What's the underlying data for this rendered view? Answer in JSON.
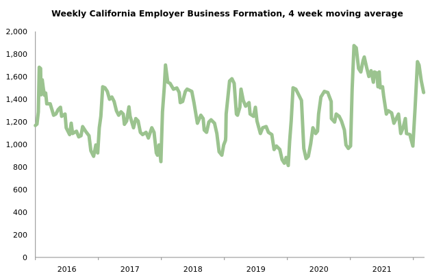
{
  "chart_data": {
    "type": "line",
    "title": "Weekly California Employer Business Formation, 4 week moving average",
    "xlabel": "",
    "ylabel": "",
    "ylim": [
      0,
      2000
    ],
    "yticks": [
      0,
      200,
      400,
      600,
      800,
      1000,
      1200,
      1400,
      1600,
      1800,
      2000
    ],
    "ytick_labels": [
      "0",
      "200",
      "400",
      "600",
      "800",
      "1,000",
      "1,200",
      "1,400",
      "1,600",
      "1,800",
      "2,000"
    ],
    "xlim": [
      2016.0,
      2022.177
    ],
    "xtick_boundaries": [
      2016,
      2017,
      2018,
      2019,
      2020,
      2021,
      2022
    ],
    "xtick_labels": [
      "2016",
      "2017",
      "2018",
      "2019",
      "2020",
      "2021"
    ],
    "grid": false,
    "line_color": "#9BC38F",
    "series": [
      {
        "x": [
          2016.0,
          2016.025,
          2016.047,
          2016.061,
          2016.083,
          2016.09,
          2016.109,
          2016.126,
          2016.145,
          2016.163,
          2016.18,
          2016.235,
          2016.289,
          2016.326,
          2016.362,
          2016.398,
          2016.416,
          2016.471,
          2016.489,
          2016.543,
          2016.568,
          2016.59,
          2016.652,
          2016.688,
          2016.724,
          2016.75,
          2016.797,
          2016.851,
          2016.88,
          2016.924,
          2016.96,
          2016.989,
          2017.014,
          2017.039,
          2017.068,
          2017.104,
          2017.141,
          2017.177,
          2017.213,
          2017.25,
          2017.286,
          2017.322,
          2017.359,
          2017.395,
          2017.413,
          2017.449,
          2017.485,
          2017.503,
          2017.558,
          2017.593,
          2017.63,
          2017.666,
          2017.702,
          2017.757,
          2017.793,
          2017.848,
          2017.884,
          2017.92,
          2017.938,
          2017.963,
          2017.992,
          2018.017,
          2018.047,
          2018.065,
          2018.101,
          2018.137,
          2018.191,
          2018.246,
          2018.283,
          2018.3,
          2018.337,
          2018.38,
          2018.409,
          2018.446,
          2018.482,
          2018.517,
          2018.572,
          2018.626,
          2018.663,
          2018.68,
          2018.717,
          2018.753,
          2018.789,
          2018.843,
          2018.88,
          2018.916,
          2018.96,
          2018.989,
          2019.017,
          2019.022,
          2019.028,
          2019.083,
          2019.12,
          2019.155,
          2019.191,
          2019.209,
          2019.246,
          2019.264,
          2019.3,
          2019.337,
          2019.391,
          2019.409,
          2019.463,
          2019.492,
          2019.517,
          2019.572,
          2019.609,
          2019.663,
          2019.699,
          2019.753,
          2019.789,
          2019.826,
          2019.88,
          2019.916,
          2019.952,
          2019.98,
          2020.014,
          2020.036,
          2020.061,
          2020.09,
          2020.134,
          2020.17,
          2020.224,
          2020.261,
          2020.297,
          2020.333,
          2020.37,
          2020.405,
          2020.449,
          2020.478,
          2020.496,
          2020.533,
          2020.587,
          2020.641,
          2020.696,
          2020.699,
          2020.75,
          2020.775,
          2020.822,
          2020.859,
          2020.905,
          2020.93,
          2020.967,
          2021.003,
          2021.028,
          2021.058,
          2021.093,
          2021.13,
          2021.166,
          2021.202,
          2021.22,
          2021.257,
          2021.293,
          2021.329,
          2021.365,
          2021.383,
          2021.42,
          2021.438,
          2021.457,
          2021.474,
          2021.511,
          2021.528,
          2021.572,
          2021.601,
          2021.655,
          2021.691,
          2021.764,
          2021.8,
          2021.837,
          2021.873,
          2021.891,
          2021.946,
          2021.963,
          2021.992,
          2022.028,
          2022.065,
          2022.09,
          2022.126,
          2022.163
        ],
        "values": [
          1168,
          1180,
          1289,
          1683,
          1673,
          1440,
          1572,
          1495,
          1435,
          1455,
          1360,
          1360,
          1259,
          1270,
          1309,
          1329,
          1249,
          1269,
          1147,
          1087,
          1188,
          1097,
          1117,
          1067,
          1077,
          1158,
          1117,
          1077,
          945,
          895,
          996,
          925,
          1148,
          1249,
          1511,
          1501,
          1470,
          1400,
          1420,
          1380,
          1299,
          1259,
          1289,
          1269,
          1178,
          1208,
          1333,
          1249,
          1148,
          1229,
          1208,
          1107,
          1087,
          1107,
          1057,
          1148,
          1107,
          925,
          905,
          996,
          848,
          1289,
          1511,
          1703,
          1551,
          1541,
          1490,
          1500,
          1460,
          1370,
          1380,
          1470,
          1490,
          1480,
          1470,
          1370,
          1188,
          1259,
          1229,
          1127,
          1107,
          1198,
          1218,
          1188,
          1097,
          935,
          905,
          996,
          1036,
          1067,
          1269,
          1562,
          1582,
          1541,
          1269,
          1259,
          1329,
          1490,
          1390,
          1339,
          1370,
          1269,
          1249,
          1329,
          1208,
          1097,
          1148,
          1158,
          1107,
          1087,
          955,
          986,
          955,
          865,
          834,
          885,
          814,
          1026,
          1208,
          1501,
          1490,
          1450,
          1390,
          965,
          875,
          895,
          1006,
          1148,
          1097,
          1117,
          1269,
          1420,
          1470,
          1460,
          1380,
          1229,
          1198,
          1269,
          1249,
          1208,
          1127,
          996,
          965,
          986,
          1490,
          1875,
          1855,
          1673,
          1642,
          1743,
          1774,
          1683,
          1602,
          1653,
          1551,
          1642,
          1632,
          1511,
          1642,
          1501,
          1511,
          1430,
          1269,
          1299,
          1279,
          1188,
          1269,
          1097,
          1148,
          1229,
          1097,
          1087,
          1046,
          986,
          1329,
          1733,
          1703,
          1562,
          1460
        ]
      }
    ]
  }
}
